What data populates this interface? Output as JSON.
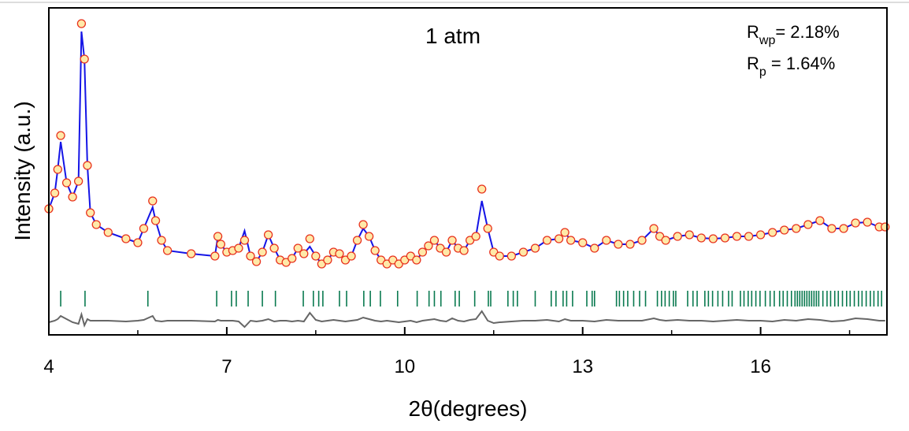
{
  "chart_data": {
    "type": "rietveld",
    "xlabel": "2θ(degrees)",
    "ylabel": "Intensity (a.u.)",
    "annotation": "1 atm",
    "fit_stats": [
      {
        "symbol": "R",
        "subscript": "wp",
        "text": "= 2.18%"
      },
      {
        "symbol": "R",
        "subscript": "p",
        "text": " = 1.64%"
      }
    ],
    "xlim": [
      4,
      18.13
    ],
    "xticks": [
      4,
      7,
      10,
      13,
      16
    ],
    "xminorticks": [
      5.5,
      8.5,
      11.5,
      14.5,
      17.5
    ],
    "ylim": [
      0,
      415
    ],
    "x": [
      4.0,
      4.1,
      4.15,
      4.2,
      4.3,
      4.4,
      4.5,
      4.55,
      4.6,
      4.65,
      4.7,
      4.8,
      5.0,
      5.3,
      5.5,
      5.6,
      5.75,
      5.8,
      5.9,
      6.0,
      6.4,
      6.8,
      6.85,
      6.9,
      7.0,
      7.1,
      7.2,
      7.3,
      7.4,
      7.5,
      7.6,
      7.7,
      7.8,
      7.9,
      8.0,
      8.1,
      8.2,
      8.3,
      8.4,
      8.5,
      8.6,
      8.7,
      8.8,
      8.9,
      9.0,
      9.1,
      9.2,
      9.3,
      9.4,
      9.5,
      9.6,
      9.7,
      9.8,
      9.9,
      10.0,
      10.1,
      10.2,
      10.3,
      10.4,
      10.5,
      10.6,
      10.7,
      10.8,
      10.9,
      11.0,
      11.1,
      11.2,
      11.3,
      11.4,
      11.5,
      11.6,
      11.8,
      12.0,
      12.2,
      12.4,
      12.6,
      12.7,
      12.8,
      13.0,
      13.2,
      13.4,
      13.6,
      13.8,
      14.0,
      14.2,
      14.3,
      14.4,
      14.6,
      14.8,
      15.0,
      15.2,
      15.4,
      15.6,
      15.8,
      16.0,
      16.2,
      16.4,
      16.6,
      16.8,
      17.0,
      17.2,
      17.4,
      17.6,
      17.8,
      18.0,
      18.1
    ],
    "series": [
      {
        "style": "markers",
        "color": "#e8321e",
        "fill": "#ffe9a8",
        "values": [
          160,
          180,
          210,
          253,
          193,
          175,
          195,
          395,
          350,
          215,
          155,
          140,
          130,
          122,
          117,
          135,
          170,
          145,
          120,
          107,
          103,
          100,
          125,
          115,
          105,
          107,
          110,
          120,
          100,
          93,
          105,
          127,
          110,
          95,
          92,
          97,
          110,
          103,
          122,
          100,
          90,
          95,
          105,
          103,
          95,
          100,
          120,
          140,
          125,
          107,
          95,
          90,
          95,
          90,
          95,
          100,
          95,
          105,
          113,
          120,
          110,
          105,
          120,
          110,
          107,
          120,
          125,
          185,
          135,
          105,
          100,
          100,
          105,
          110,
          120,
          122,
          130,
          120,
          117,
          110,
          120,
          115,
          115,
          120,
          135,
          125,
          120,
          125,
          127,
          123,
          122,
          123,
          125,
          125,
          127,
          130,
          133,
          135,
          140,
          145,
          135,
          135,
          142,
          143,
          137,
          137
        ]
      },
      {
        "style": "line",
        "color": "#1414e6",
        "values": [
          160,
          180,
          210,
          245,
          193,
          175,
          195,
          385,
          350,
          215,
          155,
          140,
          130,
          122,
          117,
          135,
          162,
          145,
          120,
          107,
          103,
          100,
          125,
          115,
          105,
          107,
          110,
          132,
          100,
          93,
          105,
          127,
          110,
          95,
          92,
          97,
          110,
          103,
          112,
          100,
          90,
          95,
          105,
          103,
          95,
          100,
          120,
          135,
          125,
          107,
          95,
          90,
          95,
          90,
          95,
          100,
          95,
          105,
          113,
          120,
          110,
          105,
          120,
          110,
          107,
          120,
          125,
          170,
          135,
          105,
          100,
          100,
          105,
          110,
          120,
          122,
          130,
          120,
          117,
          110,
          120,
          115,
          115,
          120,
          135,
          125,
          120,
          125,
          127,
          123,
          122,
          123,
          125,
          125,
          127,
          130,
          133,
          135,
          140,
          145,
          135,
          135,
          142,
          143,
          137,
          137
        ]
      },
      {
        "style": "line",
        "color": "#666666",
        "values": [
          16,
          18,
          20,
          24,
          20,
          16,
          14,
          26,
          12,
          20,
          18,
          18,
          18,
          17,
          18,
          19,
          24,
          18,
          17,
          18,
          18,
          17,
          19,
          18,
          18,
          18,
          17,
          10,
          18,
          17,
          18,
          20,
          17,
          18,
          18,
          17,
          18,
          17,
          28,
          19,
          17,
          18,
          19,
          18,
          17,
          18,
          19,
          22,
          20,
          18,
          17,
          18,
          17,
          16,
          17,
          18,
          16,
          18,
          19,
          20,
          18,
          17,
          21,
          18,
          17,
          19,
          20,
          30,
          18,
          15,
          16,
          17,
          18,
          18,
          19,
          17,
          20,
          18,
          18,
          17,
          19,
          18,
          18,
          18,
          21,
          19,
          18,
          19,
          18,
          18,
          17,
          18,
          19,
          18,
          18,
          17,
          19,
          18,
          20,
          19,
          17,
          18,
          21,
          20,
          18,
          18
        ]
      }
    ],
    "reflections": {
      "color": "#0a7a50",
      "x": [
        4.2,
        4.61,
        5.67,
        6.83,
        7.08,
        7.16,
        7.36,
        7.6,
        7.82,
        8.29,
        8.46,
        8.55,
        8.62,
        8.9,
        9.02,
        9.31,
        9.42,
        9.59,
        9.88,
        10.21,
        10.41,
        10.5,
        10.61,
        10.85,
        10.92,
        11.18,
        11.41,
        11.45,
        11.74,
        11.83,
        11.9,
        12.2,
        12.47,
        12.55,
        12.67,
        12.73,
        12.83,
        13.07,
        13.16,
        13.2,
        13.57,
        13.62,
        13.69,
        13.76,
        13.86,
        13.96,
        14.06,
        14.26,
        14.33,
        14.39,
        14.46,
        14.53,
        14.57,
        14.77,
        14.86,
        14.93,
        15.06,
        15.12,
        15.19,
        15.28,
        15.36,
        15.46,
        15.52,
        15.66,
        15.72,
        15.79,
        15.85,
        15.92,
        15.99,
        16.08,
        16.16,
        16.23,
        16.32,
        16.38,
        16.45,
        16.52,
        16.58,
        16.62,
        16.66,
        16.7,
        16.74,
        16.78,
        16.82,
        16.86,
        16.9,
        16.94,
        16.98,
        17.05,
        17.12,
        17.18,
        17.25,
        17.31,
        17.38,
        17.45,
        17.51,
        17.58,
        17.65,
        17.71,
        17.78,
        17.85,
        17.91,
        17.98,
        18.04
      ]
    }
  }
}
